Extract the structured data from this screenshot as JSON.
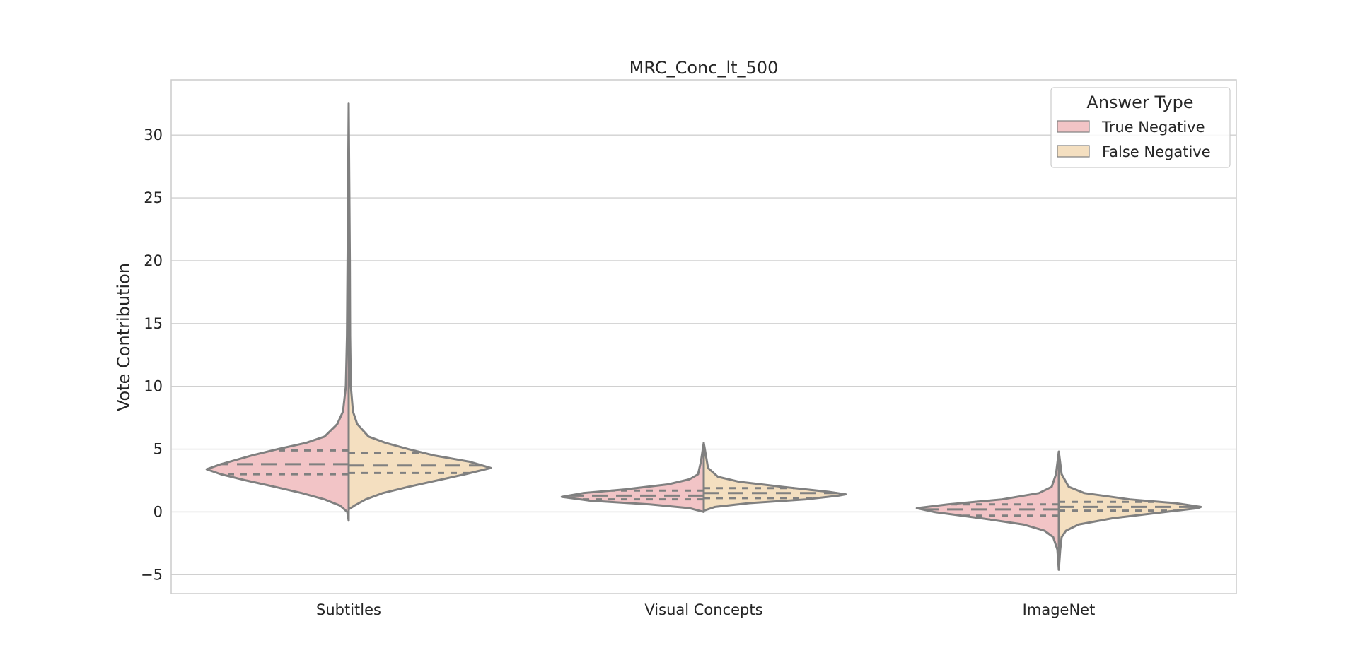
{
  "chart_data": {
    "type": "violin",
    "title": "MRC_Conc_lt_500",
    "xlabel": "",
    "ylabel": "Vote Contribution",
    "ylim": [
      -6.5,
      34.4
    ],
    "yticks": [
      -5,
      0,
      5,
      10,
      15,
      20,
      25,
      30
    ],
    "ytick_labels": [
      "−5",
      "0",
      "5",
      "10",
      "15",
      "20",
      "25",
      "30"
    ],
    "categories": [
      "Subtitles",
      "Visual Concepts",
      "ImageNet"
    ],
    "grid": true,
    "split": true,
    "inner": "quartile",
    "legend": {
      "title": "Answer Type",
      "placement": "top-right"
    },
    "colors": {
      "True Negative": "#f2c4c6",
      "False Negative": "#f4dfc0",
      "outline": "#808080",
      "grid": "#d0d0d0"
    },
    "series": [
      {
        "name": "True Negative",
        "violins": [
          {
            "min": -0.7,
            "max": 32.5,
            "q1": 3.0,
            "median": 3.8,
            "q3": 4.9,
            "profile": [
              [
                -0.7,
                0
              ],
              [
                0,
                0.01
              ],
              [
                0.5,
                0.06
              ],
              [
                1,
                0.17
              ],
              [
                1.5,
                0.33
              ],
              [
                2,
                0.52
              ],
              [
                2.5,
                0.72
              ],
              [
                3,
                0.9
              ],
              [
                3.4,
                1.0
              ],
              [
                3.8,
                0.9
              ],
              [
                4.5,
                0.68
              ],
              [
                5,
                0.5
              ],
              [
                5.5,
                0.3
              ],
              [
                6,
                0.17
              ],
              [
                7,
                0.08
              ],
              [
                8,
                0.04
              ],
              [
                10,
                0.02
              ],
              [
                14,
                0.012
              ],
              [
                20,
                0.008
              ],
              [
                32.5,
                0
              ]
            ]
          },
          {
            "min": 0.0,
            "max": 5.5,
            "q1": 1.0,
            "median": 1.3,
            "q3": 1.7,
            "profile": [
              [
                0,
                0
              ],
              [
                0.3,
                0.1
              ],
              [
                0.6,
                0.38
              ],
              [
                0.9,
                0.8
              ],
              [
                1.2,
                1.0
              ],
              [
                1.5,
                0.85
              ],
              [
                1.8,
                0.55
              ],
              [
                2.2,
                0.25
              ],
              [
                2.6,
                0.1
              ],
              [
                3,
                0.04
              ],
              [
                4,
                0.02
              ],
              [
                5.5,
                0
              ]
            ]
          },
          {
            "min": -4.6,
            "max": 4.8,
            "q1": -0.3,
            "median": 0.2,
            "q3": 0.6,
            "profile": [
              [
                -4.6,
                0
              ],
              [
                -3,
                0.01
              ],
              [
                -2,
                0.04
              ],
              [
                -1.5,
                0.1
              ],
              [
                -1,
                0.25
              ],
              [
                -0.5,
                0.55
              ],
              [
                0,
                0.88
              ],
              [
                0.3,
                1.0
              ],
              [
                0.6,
                0.78
              ],
              [
                1,
                0.4
              ],
              [
                1.5,
                0.14
              ],
              [
                2,
                0.05
              ],
              [
                3,
                0.02
              ],
              [
                4.8,
                0
              ]
            ]
          }
        ]
      },
      {
        "name": "False Negative",
        "violins": [
          {
            "min": 0.2,
            "max": 32.5,
            "q1": 3.1,
            "median": 3.7,
            "q3": 4.7,
            "profile": [
              [
                0.2,
                0
              ],
              [
                0.5,
                0.04
              ],
              [
                1,
                0.12
              ],
              [
                1.5,
                0.24
              ],
              [
                2,
                0.42
              ],
              [
                2.5,
                0.62
              ],
              [
                3,
                0.82
              ],
              [
                3.5,
                1.0
              ],
              [
                4,
                0.85
              ],
              [
                4.5,
                0.6
              ],
              [
                5,
                0.42
              ],
              [
                5.5,
                0.26
              ],
              [
                6,
                0.14
              ],
              [
                7,
                0.06
              ],
              [
                8,
                0.03
              ],
              [
                10,
                0.015
              ],
              [
                14,
                0.01
              ],
              [
                20,
                0.008
              ],
              [
                32.5,
                0
              ]
            ]
          },
          {
            "min": 0.1,
            "max": 5.5,
            "q1": 1.1,
            "median": 1.5,
            "q3": 1.9,
            "profile": [
              [
                0.1,
                0
              ],
              [
                0.4,
                0.08
              ],
              [
                0.7,
                0.32
              ],
              [
                1,
                0.72
              ],
              [
                1.3,
                0.95
              ],
              [
                1.4,
                1.0
              ],
              [
                1.6,
                0.88
              ],
              [
                2,
                0.55
              ],
              [
                2.4,
                0.25
              ],
              [
                2.8,
                0.1
              ],
              [
                3.5,
                0.03
              ],
              [
                5.5,
                0
              ]
            ]
          },
          {
            "min": -4.6,
            "max": 4.8,
            "q1": 0.1,
            "median": 0.4,
            "q3": 0.8,
            "profile": [
              [
                -4.6,
                0
              ],
              [
                -3,
                0.01
              ],
              [
                -2,
                0.02
              ],
              [
                -1.5,
                0.05
              ],
              [
                -1,
                0.14
              ],
              [
                -0.5,
                0.38
              ],
              [
                0,
                0.75
              ],
              [
                0.3,
                0.98
              ],
              [
                0.4,
                1.0
              ],
              [
                0.7,
                0.82
              ],
              [
                1,
                0.5
              ],
              [
                1.5,
                0.18
              ],
              [
                2,
                0.07
              ],
              [
                3,
                0.02
              ],
              [
                4.8,
                0
              ]
            ]
          }
        ]
      }
    ]
  }
}
